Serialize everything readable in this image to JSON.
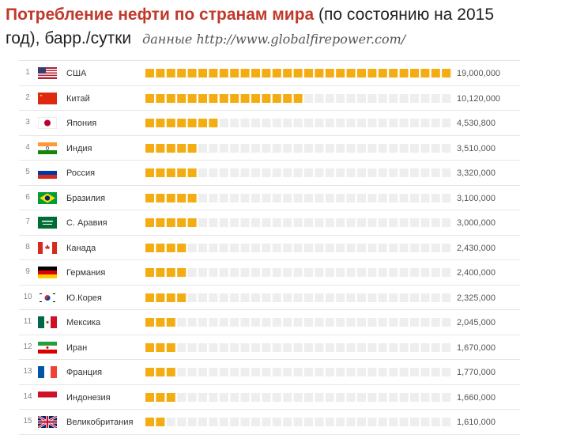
{
  "header": {
    "title_main": "Потребление нефти по странам мира",
    "title_rest": " (по состоянию на 2015",
    "title_line2": "год), барр./сутки",
    "source": "данные http://www.globalfirepower.com/"
  },
  "colors": {
    "bar": "#f3ac12",
    "bar_empty": "#eeeeee",
    "title_accent": "#c0392b"
  },
  "chart_data": {
    "type": "bar",
    "title": "Потребление нефти по странам мира (по состоянию на 2015 год), барр./сутки",
    "xlim": [
      0,
      19000000
    ],
    "categories": [
      "США",
      "Китай",
      "Япония",
      "Индия",
      "Россия",
      "Бразилия",
      "С. Аравия",
      "Канада",
      "Германия",
      "Ю.Корея",
      "Мексика",
      "Иран",
      "Франция",
      "Индонезия",
      "Великобритания"
    ],
    "values": [
      19000000,
      10120000,
      4530800,
      3510000,
      3320000,
      3100000,
      3000000,
      2430000,
      2400000,
      2325000,
      2045000,
      1670000,
      1770000,
      1660000,
      1610000
    ],
    "value_labels": [
      "19,000,000",
      "10,120,000",
      "4,530,800",
      "3,510,000",
      "3,320,000",
      "3,100,000",
      "3,000,000",
      "2,430,000",
      "2,400,000",
      "2,325,000",
      "2,045,000",
      "1,670,000",
      "1,770,000",
      "1,660,000",
      "1,610,000"
    ],
    "ranks": [
      "1",
      "2",
      "3",
      "4",
      "5",
      "6",
      "7",
      "8",
      "9",
      "10",
      "11",
      "12",
      "13",
      "14",
      "15"
    ],
    "flags": [
      "usa-flag-icon",
      "china-flag-icon",
      "japan-flag-icon",
      "india-flag-icon",
      "russia-flag-icon",
      "brazil-flag-icon",
      "saudi-arabia-flag-icon",
      "canada-flag-icon",
      "germany-flag-icon",
      "south-korea-flag-icon",
      "mexico-flag-icon",
      "iran-flag-icon",
      "france-flag-icon",
      "indonesia-flag-icon",
      "uk-flag-icon"
    ]
  }
}
